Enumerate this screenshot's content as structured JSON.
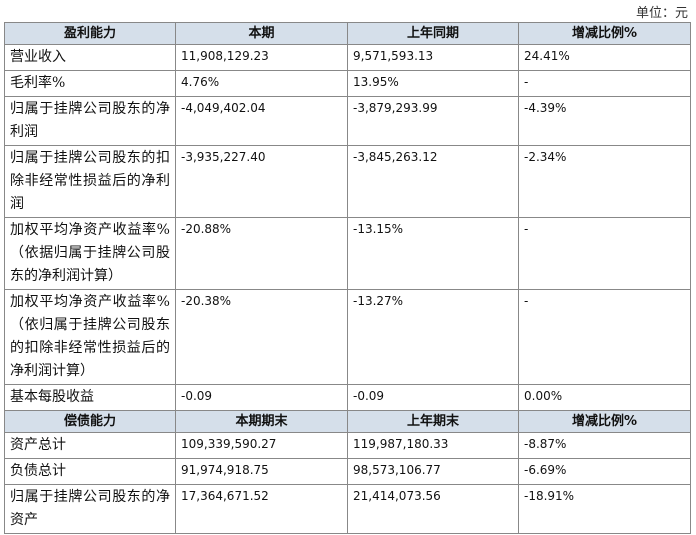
{
  "unit": "单位：元",
  "sections": [
    {
      "header": [
        "盈利能力",
        "本期",
        "上年同期",
        "增减比例%"
      ],
      "rows": [
        [
          "营业收入",
          "11,908,129.23",
          "9,571,593.13",
          "24.41%"
        ],
        [
          "毛利率%",
          "4.76%",
          "13.95%",
          "-"
        ],
        [
          "归属于挂牌公司股东的净利润",
          "-4,049,402.04",
          "-3,879,293.99",
          "-4.39%"
        ],
        [
          "归属于挂牌公司股东的扣除非经常性损益后的净利润",
          "-3,935,227.40",
          "-3,845,263.12",
          "-2.34%"
        ],
        [
          "加权平均净资产收益率%（依据归属于挂牌公司股东的净利润计算）",
          "-20.88%",
          "-13.15%",
          "-"
        ],
        [
          "加权平均净资产收益率%（依归属于挂牌公司股东的扣除非经常性损益后的净利润计算）",
          "-20.38%",
          "-13.27%",
          "-"
        ],
        [
          "基本每股收益",
          "-0.09",
          "-0.09",
          "0.00%"
        ]
      ]
    },
    {
      "header": [
        "偿债能力",
        "本期期末",
        "上年期末",
        "增减比例%"
      ],
      "rows": [
        [
          "资产总计",
          "109,339,590.27",
          "119,987,180.33",
          "-8.87%"
        ],
        [
          "负债总计",
          "91,974,918.75",
          "98,573,106.77",
          "-6.69%"
        ],
        [
          "归属于挂牌公司股东的净资产",
          "17,364,671.52",
          "21,414,073.56",
          "-18.91%"
        ]
      ]
    }
  ]
}
